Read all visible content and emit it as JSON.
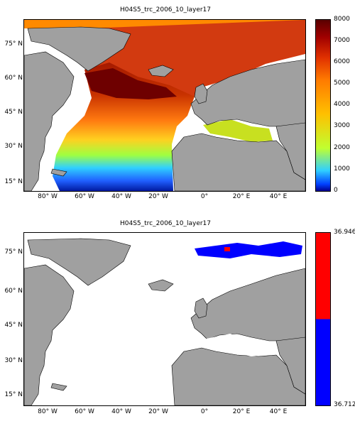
{
  "panels": [
    {
      "title": "H04S5_trc_2006_10_layer17",
      "colorbar": {
        "labels": [
          "8000",
          "7000",
          "6000",
          "5000",
          "4000",
          "3000",
          "2000",
          "1000",
          "0"
        ],
        "min": 0,
        "max": 8000
      }
    },
    {
      "title": "H04S5_trc_2006_10_layer17",
      "colorbar": {
        "labels": [
          "36.946",
          "36.712"
        ],
        "colors": [
          "#ff0000",
          "#0000ff"
        ]
      }
    }
  ],
  "lat_ticks": [
    "75° N",
    "60° N",
    "45° N",
    "30° N",
    "15° N"
  ],
  "lon_ticks": [
    "80° W",
    "60° W",
    "40° W",
    "20° W",
    "0°",
    "20° E",
    "40° E"
  ],
  "colors": {
    "land": "#a0a0a0",
    "ocean_nodata": "#ffffff"
  }
}
